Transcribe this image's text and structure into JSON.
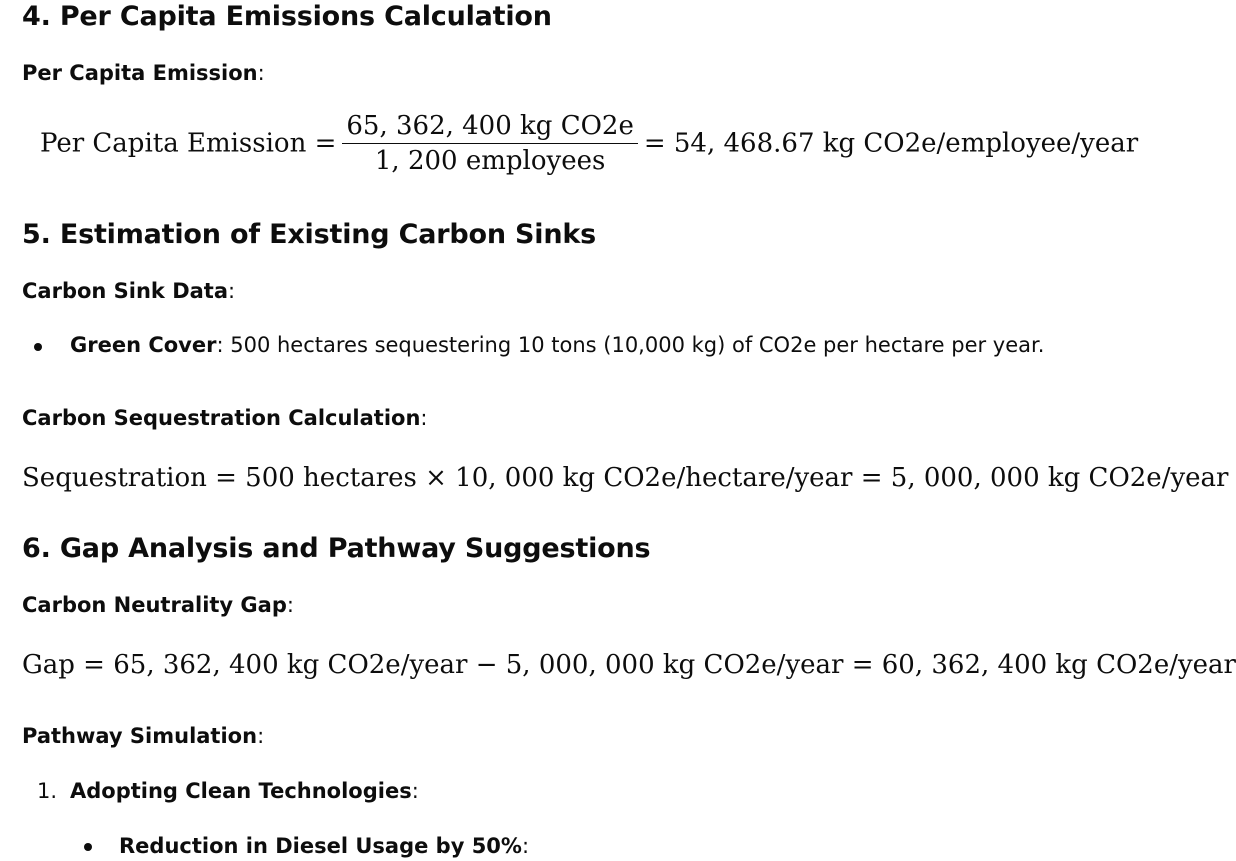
{
  "section4": {
    "heading": "4. Per Capita Emissions Calculation",
    "label": "Per Capita Emission",
    "colon": ":",
    "eq_lhs": "Per Capita Emission =",
    "eq_num": "65, 362, 400 kg CO2e",
    "eq_den": "1, 200 employees",
    "eq_rhs": "= 54, 468.67 kg CO2e/employee/year"
  },
  "section5": {
    "heading": "5. Estimation of Existing Carbon Sinks",
    "sink_label": "Carbon Sink Data",
    "colon": ":",
    "bullet_bold": "Green Cover",
    "bullet_text": ": 500 hectares sequestering 10 tons (10,000 kg) of CO2e per hectare per year.",
    "calc_label": "Carbon Sequestration Calculation",
    "calc_eq": "Sequestration = 500 hectares × 10, 000 kg CO2e/hectare/year = 5, 000, 000 kg CO2e/year"
  },
  "section6": {
    "heading": "6. Gap Analysis and Pathway Suggestions",
    "gap_label": "Carbon Neutrality Gap",
    "colon": ":",
    "gap_eq": "Gap = 65, 362, 400 kg CO2e/year − 5, 000, 000 kg CO2e/year = 60, 362, 400 kg CO2e/year",
    "pathway_label": "Pathway Simulation",
    "list_marker": "1.",
    "item1_bold": "Adopting Clean Technologies",
    "item1_colon": ":",
    "sub_bullet_bold": "Reduction in Diesel Usage by 50%",
    "sub_bullet_colon": ":"
  }
}
